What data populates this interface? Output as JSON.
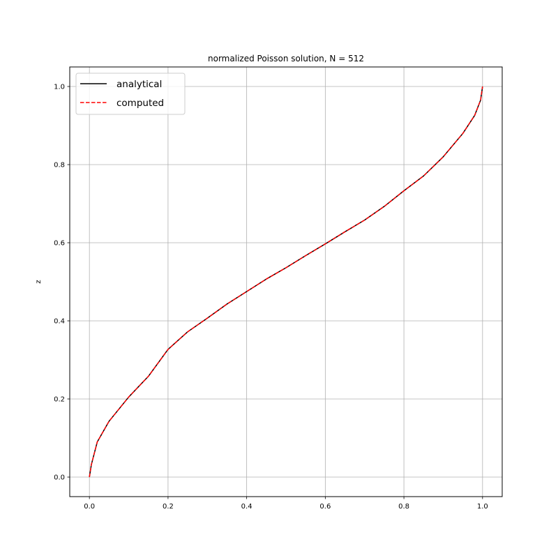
{
  "chart_data": {
    "type": "line",
    "title": "normalized Poisson solution, N = 512",
    "xlabel": "",
    "ylabel": "z",
    "xlim": [
      -0.05,
      1.05
    ],
    "ylim": [
      -0.05,
      1.05
    ],
    "xticks": [
      0.0,
      0.2,
      0.4,
      0.6,
      0.8,
      1.0
    ],
    "xtick_labels": [
      "0.0",
      "0.2",
      "0.4",
      "0.6",
      "0.8",
      "1.0"
    ],
    "yticks": [
      0.0,
      0.2,
      0.4,
      0.6,
      0.8,
      1.0
    ],
    "ytick_labels": [
      "0.0",
      "0.2",
      "0.4",
      "0.6",
      "0.8",
      "1.0"
    ],
    "grid": true,
    "legend_position": "top-left",
    "series": [
      {
        "name": "analytical",
        "color": "#000000",
        "style": "solid",
        "x": [
          0.0,
          0.005,
          0.02,
          0.05,
          0.1,
          0.15,
          0.2,
          0.25,
          0.3,
          0.35,
          0.4,
          0.45,
          0.5,
          0.55,
          0.6,
          0.65,
          0.7,
          0.75,
          0.8,
          0.85,
          0.9,
          0.95,
          0.98,
          0.995,
          1.0
        ],
        "y": [
          0.0,
          0.032,
          0.09,
          0.143,
          0.205,
          0.258,
          0.327,
          0.372,
          0.407,
          0.443,
          0.475,
          0.507,
          0.536,
          0.567,
          0.597,
          0.628,
          0.658,
          0.693,
          0.733,
          0.771,
          0.82,
          0.88,
          0.926,
          0.965,
          1.0
        ]
      },
      {
        "name": "computed",
        "color": "#ff0000",
        "style": "dashed",
        "x": [
          0.0,
          0.005,
          0.02,
          0.05,
          0.1,
          0.15,
          0.2,
          0.25,
          0.3,
          0.35,
          0.4,
          0.45,
          0.5,
          0.55,
          0.6,
          0.65,
          0.7,
          0.75,
          0.8,
          0.85,
          0.9,
          0.95,
          0.98,
          0.995,
          1.0
        ],
        "y": [
          0.0,
          0.032,
          0.09,
          0.143,
          0.205,
          0.258,
          0.327,
          0.372,
          0.407,
          0.443,
          0.475,
          0.507,
          0.536,
          0.567,
          0.597,
          0.628,
          0.658,
          0.693,
          0.733,
          0.771,
          0.82,
          0.88,
          0.926,
          0.965,
          1.0
        ]
      }
    ]
  }
}
